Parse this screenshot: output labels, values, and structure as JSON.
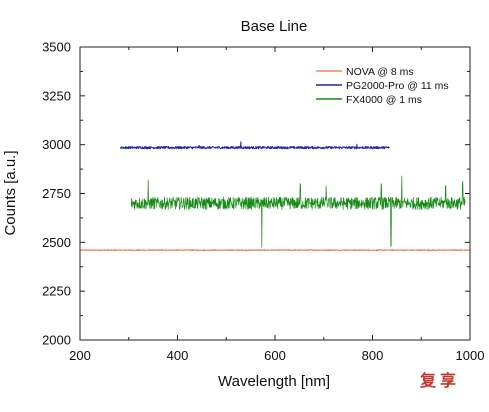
{
  "chart_data": {
    "type": "line",
    "title": "Base Line",
    "xlabel": "Wavelength [nm]",
    "ylabel": "Counts [a.u.]",
    "xlim": [
      200,
      1000
    ],
    "ylim": [
      2000,
      3500
    ],
    "xticks": [
      200,
      400,
      600,
      800,
      1000
    ],
    "yticks": [
      2000,
      2250,
      2500,
      2750,
      3000,
      3250,
      3500
    ],
    "xtick_labels": [
      "200",
      "400",
      "600",
      "800",
      "1000"
    ],
    "ytick_labels": [
      "2000",
      "2250",
      "2500",
      "2750",
      "3000",
      "3250",
      "3500"
    ],
    "grid": false,
    "legend_position": "top-right",
    "series": [
      {
        "name": "NOVA @ 8 ms",
        "color": "#e8846a",
        "x_range": [
          200,
          1000
        ],
        "baseline": 2460,
        "noise_amplitude": 3,
        "spikes": []
      },
      {
        "name": "PG2000-Pro @ 11 ms",
        "color": "#1f2a9c",
        "x_range": [
          283,
          835
        ],
        "baseline": 2985,
        "noise_amplitude": 6,
        "spikes": [
          [
            530,
            3015
          ],
          [
            768,
            3002
          ],
          [
            444,
            2995
          ]
        ]
      },
      {
        "name": "FX4000 @ 1 ms",
        "color": "#168a16",
        "x_range": [
          305,
          990
        ],
        "baseline": 2700,
        "noise_amplitude": 32,
        "spikes": [
          [
            340,
            2820
          ],
          [
            573,
            2475
          ],
          [
            652,
            2800
          ],
          [
            705,
            2790
          ],
          [
            818,
            2800
          ],
          [
            838,
            2480
          ],
          [
            860,
            2840
          ],
          [
            950,
            2790
          ],
          [
            985,
            2810
          ]
        ]
      }
    ]
  },
  "watermark": {
    "text": "复享",
    "color": "#c2362b"
  }
}
